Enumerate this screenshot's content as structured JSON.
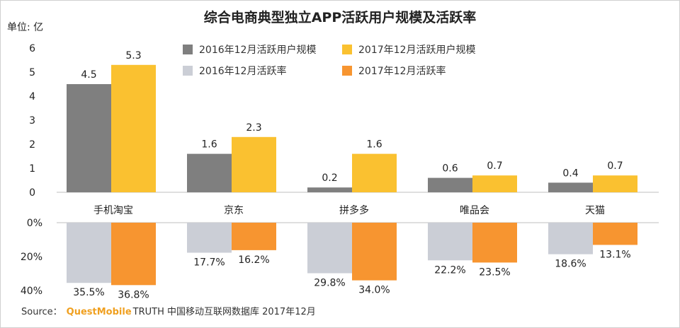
{
  "chart_data": {
    "type": "bar",
    "title": "综合电商典型独立APP活跃用户规模及活跃率",
    "unit_label": "单位: 亿",
    "categories": [
      "手机淘宝",
      "京东",
      "拼多多",
      "唯品会",
      "天猫"
    ],
    "scale": {
      "ylim": [
        0,
        6
      ],
      "ticks": [
        "0",
        "1",
        "2",
        "3",
        "4",
        "5",
        "6"
      ]
    },
    "series": [
      {
        "name": "2016年12月活跃用户规模",
        "values": [
          4.5,
          1.6,
          0.2,
          0.6,
          0.4
        ],
        "labels": [
          "4.5",
          "1.6",
          "0.2",
          "0.6",
          "0.4"
        ],
        "color": "#7f7f7f"
      },
      {
        "name": "2017年12月活跃用户规模",
        "values": [
          5.3,
          2.3,
          1.6,
          0.7,
          0.7
        ],
        "labels": [
          "5.3",
          "2.3",
          "1.6",
          "0.7",
          "0.7"
        ],
        "color": "#fac130"
      }
    ],
    "rate": {
      "ylim": [
        0,
        40
      ],
      "ticks": [
        "0%",
        "20%",
        "40%"
      ],
      "series": [
        {
          "name": "2016年12月活跃率",
          "values": [
            35.5,
            17.7,
            29.8,
            22.2,
            18.6
          ],
          "labels": [
            "35.5%",
            "17.7%",
            "29.8%",
            "22.2%",
            "18.6%"
          ],
          "color": "#cbced6"
        },
        {
          "name": "2017年12月活跃率",
          "values": [
            36.8,
            16.2,
            34.0,
            23.5,
            13.1
          ],
          "labels": [
            "36.8%",
            "16.2%",
            "34.0%",
            "23.5%",
            "13.1%"
          ],
          "color": "#f79530"
        }
      ]
    },
    "legend_position": "top-right"
  },
  "source": {
    "prefix": "Source：",
    "brand": "QuestMobile",
    "text": "TRUTH 中国移动互联网数据库 2017年12月"
  }
}
